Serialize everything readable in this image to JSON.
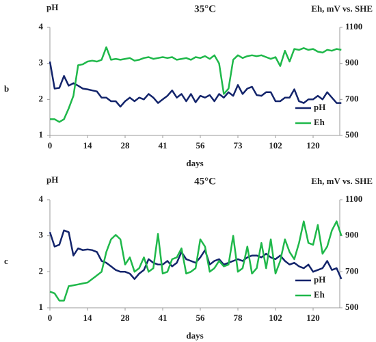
{
  "chart_data": [
    {
      "type": "line",
      "panel": "b",
      "title": "35°C",
      "ylabel": "pH",
      "y2label": "Eh, mV vs. SHE",
      "xlabel": "days",
      "categories": [
        "0",
        null,
        null,
        null,
        null,
        null,
        null,
        null,
        "14",
        null,
        null,
        null,
        null,
        null,
        null,
        null,
        "28",
        null,
        null,
        null,
        null,
        null,
        null,
        null,
        "41",
        null,
        null,
        null,
        null,
        null,
        null,
        null,
        "56",
        null,
        null,
        null,
        null,
        null,
        null,
        null,
        "73",
        null,
        null,
        null,
        null,
        null,
        null,
        null,
        "102",
        null,
        null,
        null,
        null,
        null,
        null,
        null,
        "120",
        null,
        null,
        null,
        null,
        null,
        null
      ],
      "ylim": [
        1,
        4
      ],
      "yticks": [
        1,
        2,
        3,
        4
      ],
      "y2lim": [
        500,
        1100
      ],
      "y2ticks": [
        500,
        700,
        900,
        1100
      ],
      "legend": "lower right",
      "series": [
        {
          "name": "pH",
          "color": "#13246b",
          "values": [
            3.05,
            2.3,
            2.32,
            2.65,
            2.38,
            2.45,
            2.38,
            2.3,
            2.28,
            2.25,
            2.22,
            2.05,
            2.05,
            1.95,
            1.95,
            1.8,
            1.95,
            2.05,
            1.95,
            2.05,
            2.0,
            2.15,
            2.05,
            1.9,
            2.0,
            2.1,
            2.25,
            2.05,
            2.15,
            1.95,
            2.15,
            1.92,
            2.1,
            2.05,
            2.12,
            1.95,
            2.15,
            2.05,
            2.2,
            2.1,
            2.4,
            2.15,
            2.3,
            2.35,
            2.12,
            2.1,
            2.2,
            2.2,
            1.95,
            1.95,
            2.05,
            2.05,
            2.28,
            1.95,
            1.9,
            2.0,
            2.0,
            2.1,
            2.0,
            2.2,
            2.05,
            1.9,
            1.9
          ]
        },
        {
          "name": "Eh",
          "color": "#1fb84a",
          "axis": "y2",
          "values": [
            590,
            590,
            575,
            590,
            650,
            720,
            890,
            895,
            910,
            915,
            910,
            920,
            990,
            920,
            925,
            920,
            925,
            930,
            915,
            920,
            930,
            935,
            925,
            930,
            935,
            930,
            935,
            920,
            925,
            930,
            920,
            935,
            930,
            940,
            925,
            945,
            900,
            730,
            760,
            920,
            945,
            930,
            940,
            945,
            940,
            945,
            935,
            925,
            935,
            885,
            970,
            910,
            980,
            975,
            985,
            975,
            980,
            965,
            960,
            975,
            970,
            980,
            975
          ]
        }
      ]
    },
    {
      "type": "line",
      "panel": "c",
      "title": "45°C",
      "ylabel": "pH",
      "y2label": "Eh, mV vs. SHE",
      "xlabel": "days",
      "categories": [
        "0",
        null,
        null,
        null,
        null,
        null,
        null,
        null,
        "14",
        null,
        null,
        null,
        null,
        null,
        null,
        null,
        "28",
        null,
        null,
        null,
        null,
        null,
        null,
        null,
        "41",
        null,
        null,
        null,
        null,
        null,
        null,
        null,
        "56",
        null,
        null,
        null,
        null,
        null,
        null,
        null,
        "78",
        null,
        null,
        null,
        null,
        null,
        null,
        null,
        "102",
        null,
        null,
        null,
        null,
        null,
        null,
        null,
        "120",
        null,
        null,
        null,
        null,
        null,
        null
      ],
      "ylim": [
        1,
        4
      ],
      "yticks": [
        1,
        2,
        3,
        4
      ],
      "y2lim": [
        500,
        1100
      ],
      "y2ticks": [
        500,
        700,
        900,
        1100
      ],
      "legend": "lower right",
      "series": [
        {
          "name": "pH",
          "color": "#13246b",
          "values": [
            3.1,
            2.7,
            2.75,
            3.15,
            3.1,
            2.45,
            2.65,
            2.6,
            2.62,
            2.6,
            2.55,
            2.3,
            2.25,
            2.15,
            2.05,
            2.0,
            2.0,
            1.95,
            1.8,
            1.95,
            2.05,
            2.35,
            2.25,
            2.2,
            2.2,
            2.3,
            2.15,
            2.25,
            2.55,
            2.35,
            2.3,
            2.25,
            2.4,
            2.6,
            2.2,
            2.3,
            2.35,
            2.2,
            2.25,
            2.3,
            2.35,
            2.3,
            2.4,
            2.45,
            2.45,
            2.4,
            2.5,
            2.4,
            2.35,
            2.45,
            2.3,
            2.2,
            2.25,
            2.15,
            2.1,
            2.2,
            2.0,
            2.05,
            2.1,
            2.3,
            2.05,
            2.1,
            1.8
          ]
        },
        {
          "name": "Eh",
          "color": "#1fb84a",
          "axis": "y2",
          "values": [
            590,
            580,
            540,
            540,
            620,
            625,
            630,
            635,
            640,
            660,
            680,
            700,
            810,
            880,
            905,
            880,
            740,
            780,
            700,
            720,
            780,
            700,
            720,
            910,
            690,
            700,
            770,
            780,
            830,
            690,
            700,
            720,
            880,
            840,
            700,
            720,
            760,
            730,
            740,
            900,
            700,
            720,
            840,
            690,
            720,
            860,
            720,
            880,
            690,
            760,
            880,
            810,
            770,
            860,
            980,
            860,
            850,
            960,
            800,
            840,
            930,
            980,
            900
          ]
        }
      ]
    }
  ]
}
